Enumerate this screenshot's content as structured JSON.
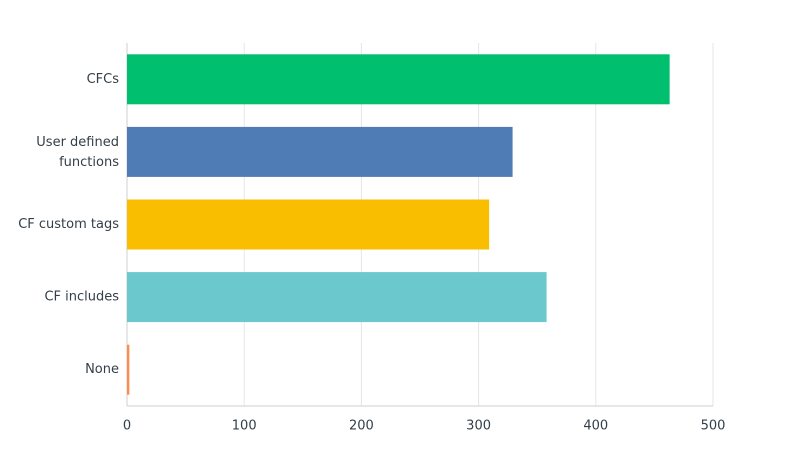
{
  "chart_data": {
    "type": "hbar",
    "categories": [
      "CFCs",
      "User defined functions",
      "CF custom tags",
      "CF includes",
      "None"
    ],
    "values": [
      463,
      329,
      309,
      358,
      2
    ],
    "colors": [
      "#00bf6f",
      "#507cb6",
      "#f9be00",
      "#6bc8cd",
      "#ff8b4f"
    ],
    "xlim": [
      0,
      500
    ],
    "xticks": [
      0,
      100,
      200,
      300,
      400,
      500
    ],
    "grid": true
  }
}
